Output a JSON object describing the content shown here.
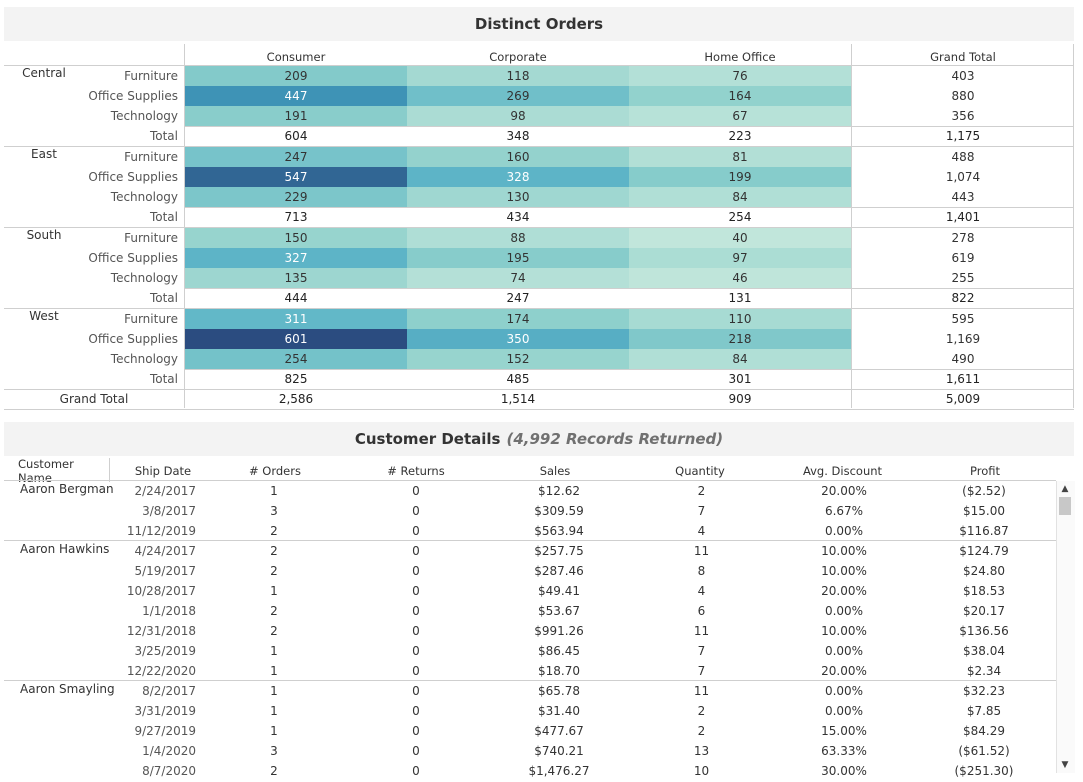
{
  "distinct_orders": {
    "title": "Distinct Orders",
    "headers": [
      "Consumer",
      "Corporate",
      "Home Office",
      "Grand Total"
    ],
    "regions": [
      {
        "name": "Central",
        "rows": [
          {
            "cat": "Furniture",
            "v": [
              209,
              118,
              76
            ],
            "gt": "403"
          },
          {
            "cat": "Office Supplies",
            "v": [
              447,
              269,
              164
            ],
            "gt": "880"
          },
          {
            "cat": "Technology",
            "v": [
              191,
              98,
              67
            ],
            "gt": "356"
          }
        ],
        "total": {
          "label": "Total",
          "v": [
            "604",
            "348",
            "223"
          ],
          "gt": "1,175"
        }
      },
      {
        "name": "East",
        "rows": [
          {
            "cat": "Furniture",
            "v": [
              247,
              160,
              81
            ],
            "gt": "488"
          },
          {
            "cat": "Office Supplies",
            "v": [
              547,
              328,
              199
            ],
            "gt": "1,074"
          },
          {
            "cat": "Technology",
            "v": [
              229,
              130,
              84
            ],
            "gt": "443"
          }
        ],
        "total": {
          "label": "Total",
          "v": [
            "713",
            "434",
            "254"
          ],
          "gt": "1,401"
        }
      },
      {
        "name": "South",
        "rows": [
          {
            "cat": "Furniture",
            "v": [
              150,
              88,
              40
            ],
            "gt": "278"
          },
          {
            "cat": "Office Supplies",
            "v": [
              327,
              195,
              97
            ],
            "gt": "619"
          },
          {
            "cat": "Technology",
            "v": [
              135,
              74,
              46
            ],
            "gt": "255"
          }
        ],
        "total": {
          "label": "Total",
          "v": [
            "444",
            "247",
            "131"
          ],
          "gt": "822"
        }
      },
      {
        "name": "West",
        "rows": [
          {
            "cat": "Furniture",
            "v": [
              311,
              174,
              110
            ],
            "gt": "595"
          },
          {
            "cat": "Office Supplies",
            "v": [
              601,
              350,
              218
            ],
            "gt": "1,169"
          },
          {
            "cat": "Technology",
            "v": [
              254,
              152,
              84
            ],
            "gt": "490"
          }
        ],
        "total": {
          "label": "Total",
          "v": [
            "825",
            "485",
            "301"
          ],
          "gt": "1,611"
        }
      }
    ],
    "grand_total": {
      "label": "Grand Total",
      "v": [
        "2,586",
        "1,514",
        "909"
      ],
      "gt": "5,009"
    },
    "color_scale": {
      "min": 40,
      "max": 601,
      "low": "#bfe6d8",
      "high": "#2d4b7e"
    }
  },
  "customer_details": {
    "title": "Customer Details",
    "subtitle": "(4,992 Records Returned)",
    "headers": [
      "Customer Name",
      "Ship Date",
      "# Orders",
      "# Returns",
      "Sales",
      "Quantity",
      "Avg. Discount",
      "Profit"
    ],
    "groups": [
      {
        "name": "Aaron Bergman",
        "rows": [
          [
            "2/24/2017",
            "1",
            "0",
            "$12.62",
            "2",
            "20.00%",
            "($2.52)"
          ],
          [
            "3/8/2017",
            "3",
            "0",
            "$309.59",
            "7",
            "6.67%",
            "$15.00"
          ],
          [
            "11/12/2019",
            "2",
            "0",
            "$563.94",
            "4",
            "0.00%",
            "$116.87"
          ]
        ]
      },
      {
        "name": "Aaron Hawkins",
        "rows": [
          [
            "4/24/2017",
            "2",
            "0",
            "$257.75",
            "11",
            "10.00%",
            "$124.79"
          ],
          [
            "5/19/2017",
            "2",
            "0",
            "$287.46",
            "8",
            "10.00%",
            "$24.80"
          ],
          [
            "10/28/2017",
            "1",
            "0",
            "$49.41",
            "4",
            "20.00%",
            "$18.53"
          ],
          [
            "1/1/2018",
            "2",
            "0",
            "$53.67",
            "6",
            "0.00%",
            "$20.17"
          ],
          [
            "12/31/2018",
            "2",
            "0",
            "$991.26",
            "11",
            "10.00%",
            "$136.56"
          ],
          [
            "3/25/2019",
            "1",
            "0",
            "$86.45",
            "7",
            "0.00%",
            "$38.04"
          ],
          [
            "12/22/2020",
            "1",
            "0",
            "$18.70",
            "7",
            "20.00%",
            "$2.34"
          ]
        ]
      },
      {
        "name": "Aaron Smayling",
        "rows": [
          [
            "8/2/2017",
            "1",
            "0",
            "$65.78",
            "11",
            "0.00%",
            "$32.23"
          ],
          [
            "3/31/2019",
            "1",
            "0",
            "$31.40",
            "2",
            "0.00%",
            "$7.85"
          ],
          [
            "9/27/2019",
            "1",
            "0",
            "$477.67",
            "2",
            "15.00%",
            "$84.29"
          ],
          [
            "1/4/2020",
            "3",
            "0",
            "$740.21",
            "13",
            "63.33%",
            "($61.52)"
          ],
          [
            "8/7/2020",
            "2",
            "0",
            "$1,476.27",
            "10",
            "30.00%",
            "($251.30)"
          ]
        ]
      }
    ]
  },
  "scrollbar": {
    "up_icon": "▲",
    "down_icon": "▼"
  }
}
